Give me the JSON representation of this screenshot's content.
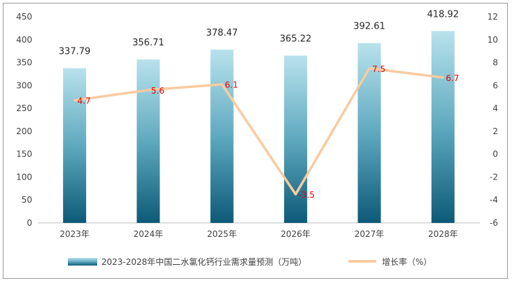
{
  "chart_data": {
    "type": "bar",
    "categories": [
      "2023年",
      "2024年",
      "2025年",
      "2026年",
      "2027年",
      "2028年"
    ],
    "series": [
      {
        "name": "2023-2028年中国二水氯化钙行业需求量预测（万吨）",
        "type": "bar",
        "axis": "left",
        "values": [
          337.79,
          356.71,
          378.47,
          365.22,
          392.61,
          418.92
        ],
        "labels": [
          "337.79",
          "356.71",
          "378.47",
          "365.22",
          "392.61",
          "418.92"
        ]
      },
      {
        "name": "增长率（%）",
        "type": "line",
        "axis": "right",
        "values": [
          4.7,
          5.6,
          6.1,
          -3.5,
          7.5,
          6.7
        ],
        "labels": [
          "4.7",
          "5.6",
          "6.1",
          "-3.5",
          "7.5",
          "6.7"
        ]
      }
    ],
    "y_left": {
      "ylim": [
        0,
        450
      ],
      "ticks": [
        "0",
        "50",
        "100",
        "150",
        "200",
        "250",
        "300",
        "350",
        "400",
        "450"
      ]
    },
    "y_right": {
      "ylim": [
        -6,
        12
      ],
      "ticks": [
        "-6",
        "-4",
        "-2",
        "0",
        "2",
        "4",
        "6",
        "8",
        "10",
        "12"
      ]
    },
    "grid": false,
    "legend": "bottom",
    "colors": {
      "bar_top": "#b8e2ec",
      "bar_bottom": "#0c5a78",
      "line": "#f8cba0",
      "line_label": "#e60000"
    }
  }
}
